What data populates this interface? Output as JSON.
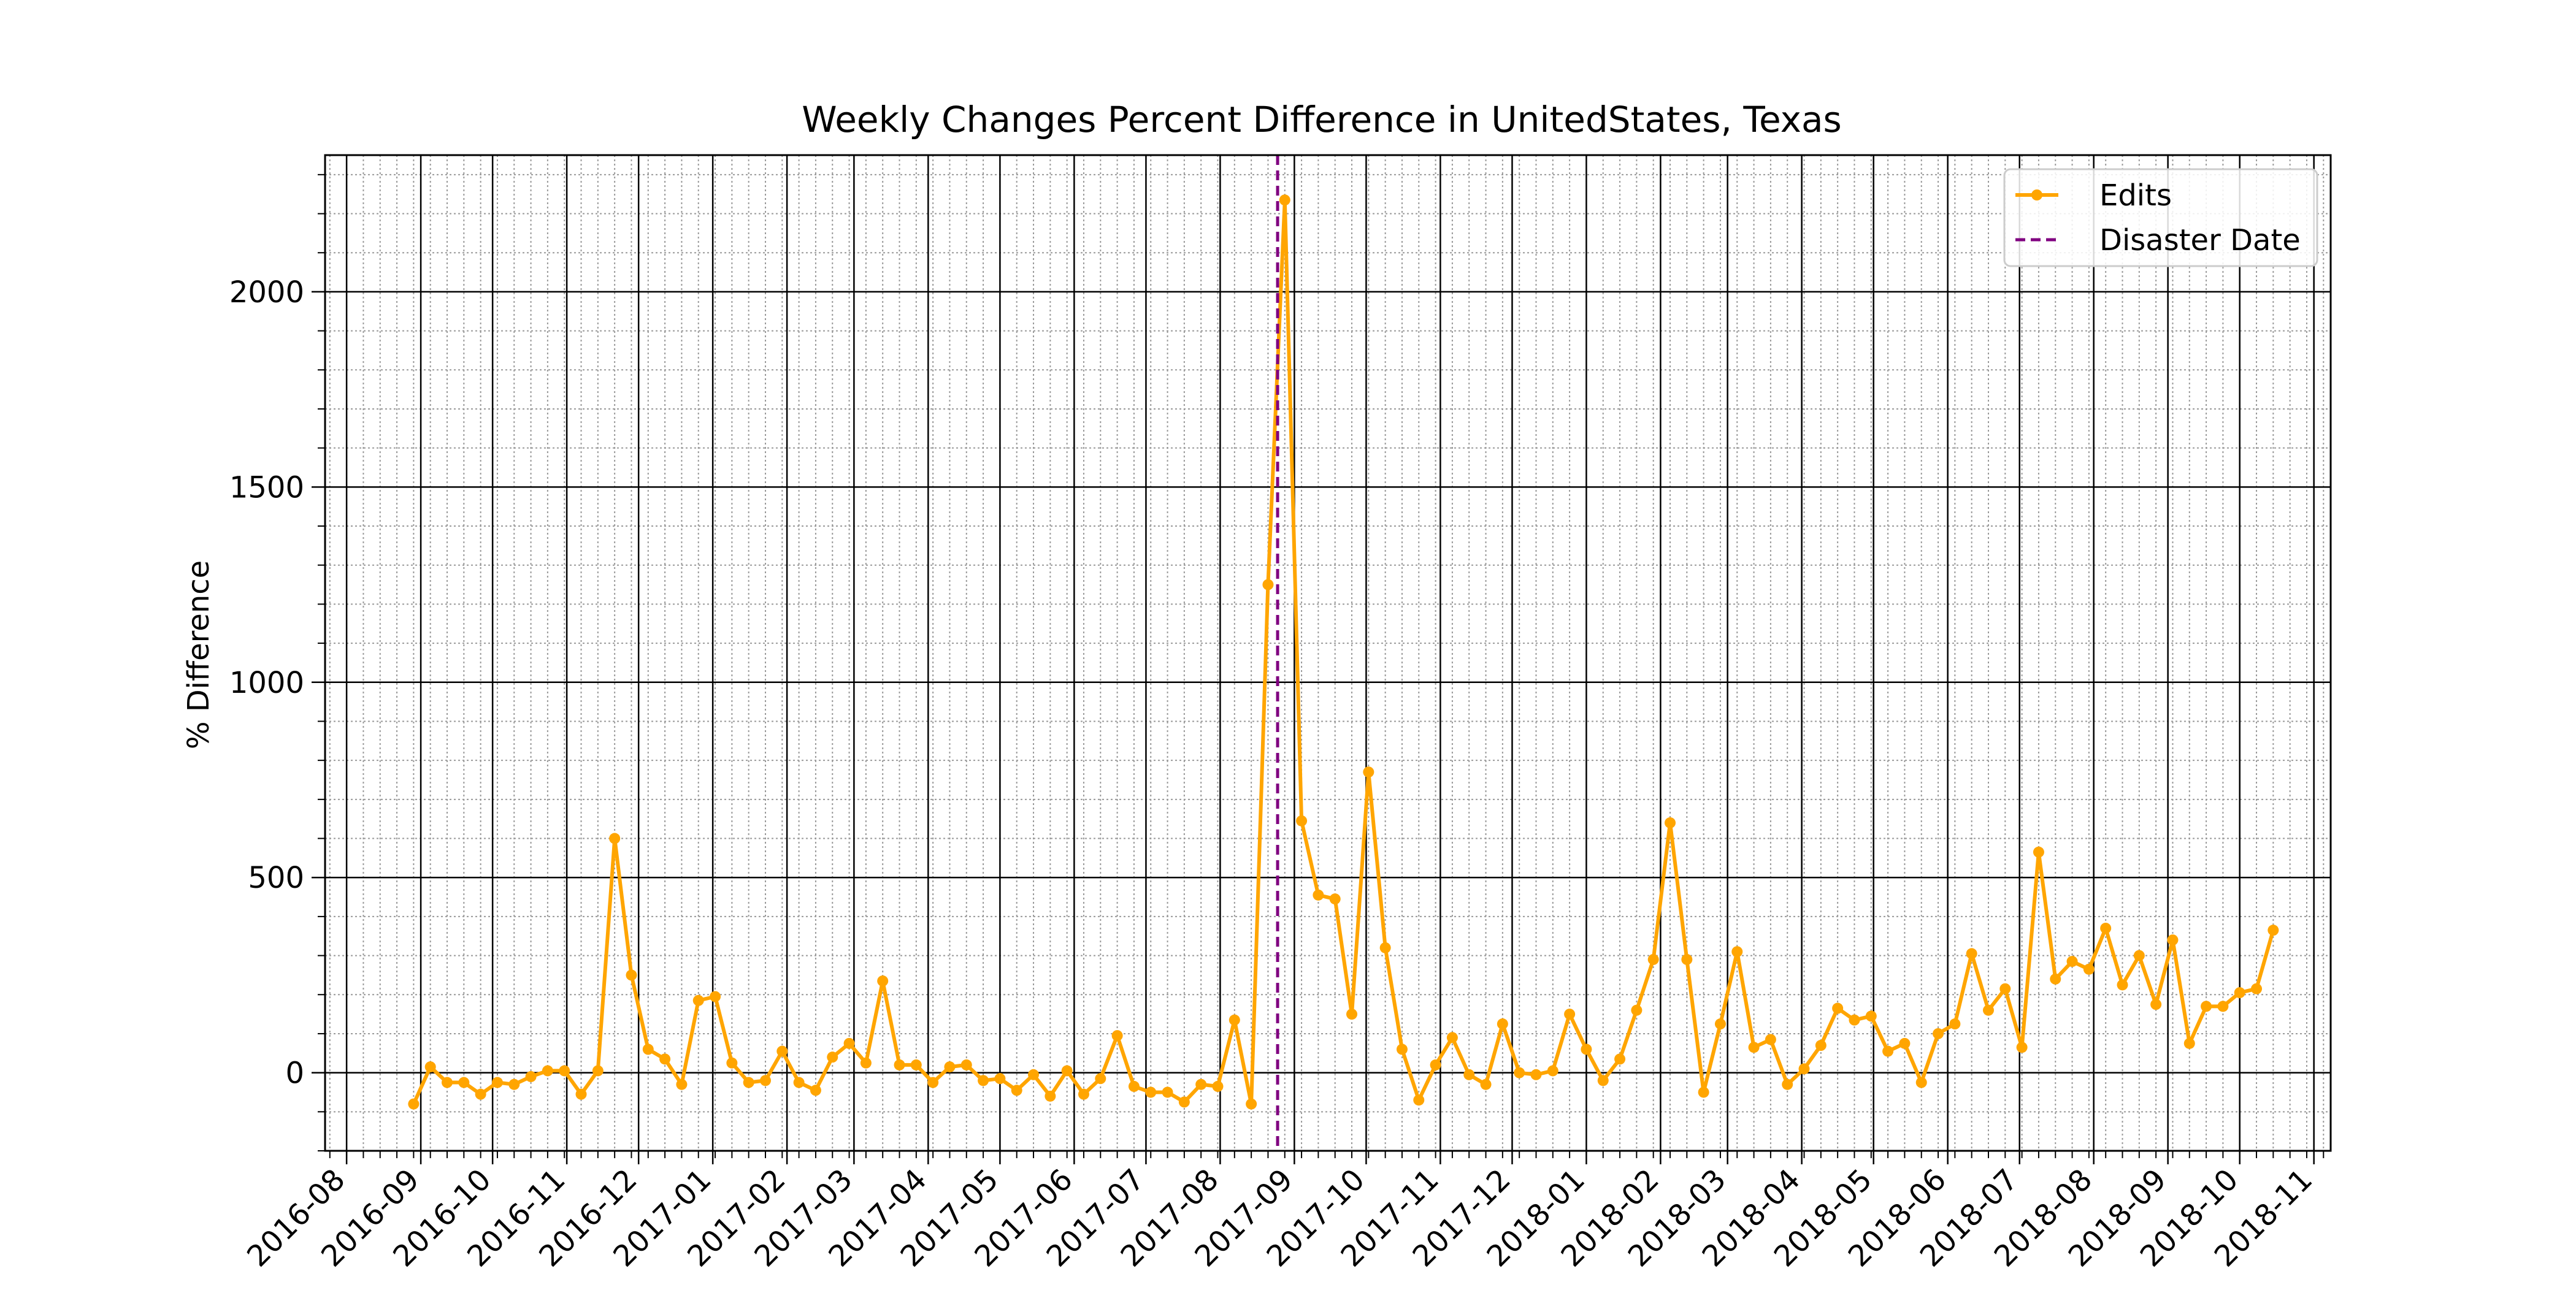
{
  "chart_data": {
    "type": "line",
    "title": "Weekly Changes Percent Difference in UnitedStates, Texas",
    "xlabel": "",
    "ylabel": "% Difference",
    "x_axis_type": "date",
    "xlim": [
      "2016-07-23",
      "2018-11-08"
    ],
    "ylim": [
      -200,
      2350
    ],
    "xticks": [
      "2016-08",
      "2016-09",
      "2016-10",
      "2016-11",
      "2016-12",
      "2017-01",
      "2017-02",
      "2017-03",
      "2017-04",
      "2017-05",
      "2017-06",
      "2017-07",
      "2017-08",
      "2017-09",
      "2017-10",
      "2017-11",
      "2017-12",
      "2018-01",
      "2018-02",
      "2018-03",
      "2018-04",
      "2018-05",
      "2018-06",
      "2018-07",
      "2018-08",
      "2018-09",
      "2018-10",
      "2018-11"
    ],
    "yticks": [
      0,
      500,
      1000,
      1500,
      2000
    ],
    "grid": "major and minor",
    "legend_position": "top-right",
    "colors": {
      "edits": "#FFA500",
      "disaster": "#800080"
    },
    "disaster_date": "2017-08-25",
    "series": [
      {
        "name": "Edits",
        "marker": "circle",
        "x": [
          "2016-08-29",
          "2016-09-05",
          "2016-09-12",
          "2016-09-19",
          "2016-09-26",
          "2016-10-03",
          "2016-10-10",
          "2016-10-17",
          "2016-10-24",
          "2016-10-31",
          "2016-11-07",
          "2016-11-14",
          "2016-11-21",
          "2016-11-28",
          "2016-12-05",
          "2016-12-12",
          "2016-12-19",
          "2016-12-26",
          "2017-01-02",
          "2017-01-09",
          "2017-01-16",
          "2017-01-23",
          "2017-01-30",
          "2017-02-06",
          "2017-02-13",
          "2017-02-20",
          "2017-02-27",
          "2017-03-06",
          "2017-03-13",
          "2017-03-20",
          "2017-03-27",
          "2017-04-03",
          "2017-04-10",
          "2017-04-17",
          "2017-04-24",
          "2017-05-01",
          "2017-05-08",
          "2017-05-15",
          "2017-05-22",
          "2017-05-29",
          "2017-06-05",
          "2017-06-12",
          "2017-06-19",
          "2017-06-26",
          "2017-07-03",
          "2017-07-10",
          "2017-07-17",
          "2017-07-24",
          "2017-07-31",
          "2017-08-07",
          "2017-08-14",
          "2017-08-21",
          "2017-08-28",
          "2017-09-04",
          "2017-09-11",
          "2017-09-18",
          "2017-09-25",
          "2017-10-02",
          "2017-10-09",
          "2017-10-16",
          "2017-10-23",
          "2017-10-30",
          "2017-11-06",
          "2017-11-13",
          "2017-11-20",
          "2017-11-27",
          "2017-12-04",
          "2017-12-11",
          "2017-12-18",
          "2017-12-25",
          "2018-01-01",
          "2018-01-08",
          "2018-01-15",
          "2018-01-22",
          "2018-01-29",
          "2018-02-05",
          "2018-02-12",
          "2018-02-19",
          "2018-02-26",
          "2018-03-05",
          "2018-03-12",
          "2018-03-19",
          "2018-03-26",
          "2018-04-02",
          "2018-04-09",
          "2018-04-16",
          "2018-04-23",
          "2018-04-30",
          "2018-05-07",
          "2018-05-14",
          "2018-05-21",
          "2018-05-28",
          "2018-06-04",
          "2018-06-11",
          "2018-06-18",
          "2018-06-25",
          "2018-07-02",
          "2018-07-09",
          "2018-07-16",
          "2018-07-23",
          "2018-07-30",
          "2018-08-06",
          "2018-08-13",
          "2018-08-20",
          "2018-08-27",
          "2018-09-03",
          "2018-09-10",
          "2018-09-17",
          "2018-09-24",
          "2018-10-01",
          "2018-10-08",
          "2018-10-15"
        ],
        "y": [
          -80,
          15,
          -25,
          -25,
          -55,
          -25,
          -30,
          -10,
          5,
          5,
          -55,
          5,
          600,
          250,
          60,
          35,
          -30,
          185,
          195,
          25,
          -25,
          -20,
          55,
          -25,
          -45,
          40,
          75,
          25,
          235,
          20,
          20,
          -25,
          15,
          20,
          -20,
          -15,
          -45,
          -5,
          -60,
          5,
          -55,
          -15,
          95,
          -35,
          -50,
          -50,
          -75,
          -30,
          -35,
          135,
          -80,
          1250,
          2235,
          645,
          455,
          445,
          150,
          770,
          320,
          60,
          -70,
          20,
          90,
          -5,
          -30,
          125,
          0,
          -5,
          5,
          150,
          60,
          -20,
          35,
          160,
          290,
          640,
          290,
          -50,
          125,
          310,
          65,
          85,
          -30,
          10,
          70,
          165,
          135,
          145,
          55,
          75,
          -25,
          100,
          125,
          305,
          160,
          215,
          65,
          565,
          240,
          285,
          265,
          370,
          225,
          300,
          175,
          340,
          75,
          170,
          170,
          205,
          215,
          365
        ]
      }
    ]
  }
}
